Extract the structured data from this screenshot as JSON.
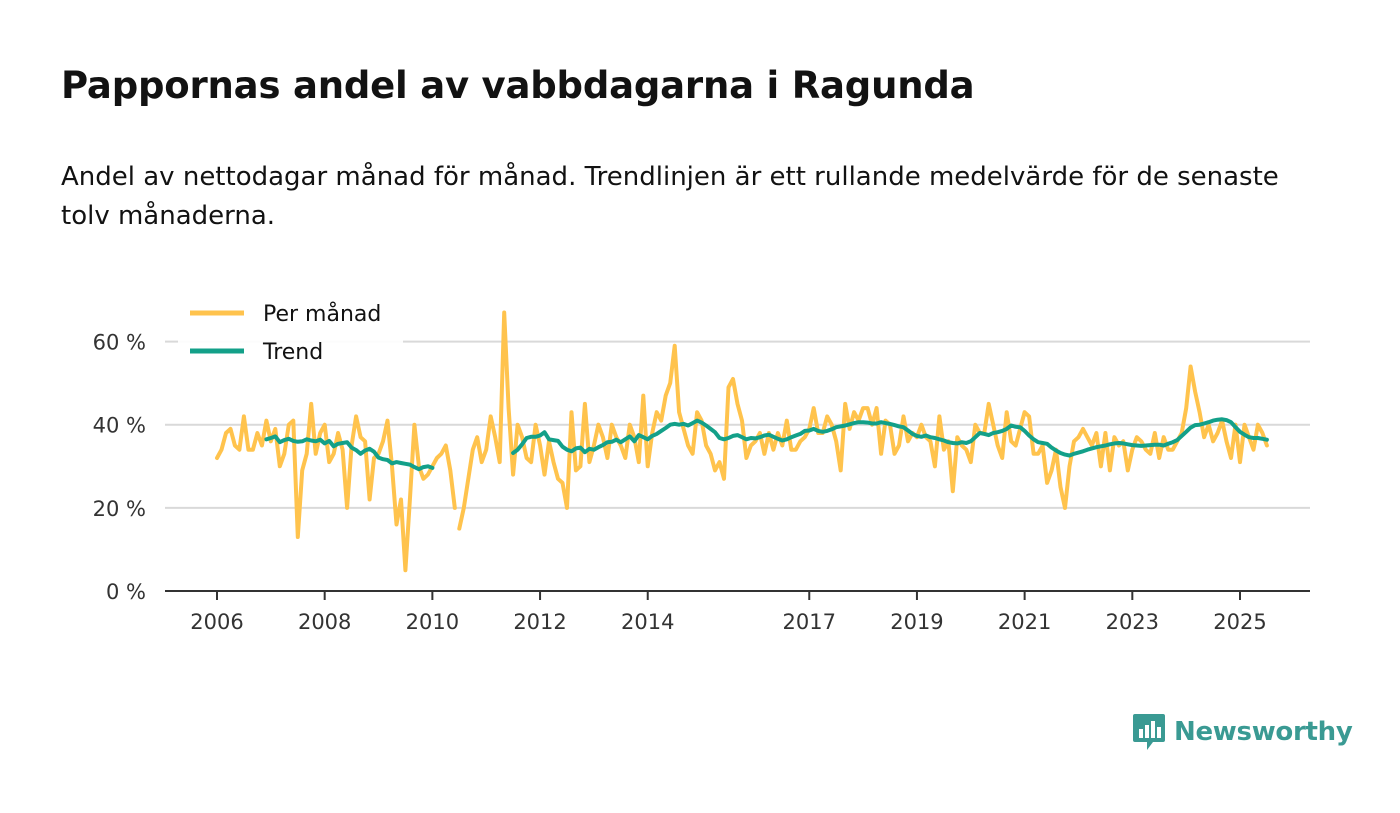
{
  "title": "Pappornas andel av vabbdagarna i Ragunda",
  "subtitle": "Andel av nettodagar månad för månad. Trendlinjen är ett rullande medelvärde för de senaste tolv månaderna.",
  "brand": {
    "name": "Newsworthy",
    "color": "#3a9a93"
  },
  "chart_data": {
    "type": "line",
    "title": "Pappornas andel av vabbdagarna i Ragunda",
    "xlabel": "",
    "ylabel": "",
    "ylim": [
      0,
      70
    ],
    "xlim": [
      2005.5,
      2026.3
    ],
    "grid": true,
    "legend_position": "top-left",
    "y_ticks": [
      {
        "value": 0,
        "label": "0 %"
      },
      {
        "value": 20,
        "label": "20 %"
      },
      {
        "value": 40,
        "label": "40 %"
      },
      {
        "value": 60,
        "label": "60 %"
      }
    ],
    "x_ticks": [
      {
        "value": 2006,
        "label": "2006"
      },
      {
        "value": 2008,
        "label": "2008"
      },
      {
        "value": 2010,
        "label": "2010"
      },
      {
        "value": 2012,
        "label": "2012"
      },
      {
        "value": 2014,
        "label": "2014"
      },
      {
        "value": 2017,
        "label": "2017"
      },
      {
        "value": 2019,
        "label": "2019"
      },
      {
        "value": 2021,
        "label": "2021"
      },
      {
        "value": 2023,
        "label": "2023"
      },
      {
        "value": 2025,
        "label": "2025"
      }
    ],
    "series": [
      {
        "name": "Per månad",
        "color": "#ffc34d",
        "segments": [
          {
            "start": 2006.0,
            "values": [
              32,
              34,
              38,
              39,
              35,
              34,
              42,
              34,
              34,
              38,
              35,
              41,
              36,
              39,
              30,
              33,
              40,
              41,
              13,
              29,
              33,
              45,
              33,
              38,
              40,
              31,
              33,
              38,
              34,
              20,
              35,
              42,
              37,
              36,
              22,
              32,
              33,
              36,
              41,
              30,
              16,
              22,
              5,
              22,
              40,
              30,
              27,
              28,
              30,
              32,
              33,
              35,
              29,
              20
            ]
          },
          {
            "start": 2010.5,
            "values": [
              15,
              20,
              27,
              34,
              37,
              31,
              34,
              42,
              37,
              31,
              67,
              44,
              28,
              40,
              37,
              32,
              31,
              40,
              35,
              28,
              36,
              31,
              27,
              26,
              20,
              43,
              29,
              30,
              45,
              31,
              35,
              40,
              37,
              32,
              40,
              37,
              35,
              32,
              40,
              37,
              31,
              47,
              30,
              38,
              43,
              41,
              47,
              50,
              59,
              43,
              39,
              35,
              33,
              43,
              41,
              35,
              33,
              29,
              31,
              27,
              49,
              51,
              45,
              41,
              32,
              35,
              36,
              38,
              33,
              38,
              34,
              38,
              35,
              41,
              34,
              34,
              36,
              37,
              39,
              44,
              38,
              38,
              42,
              40,
              36,
              29,
              45,
              39,
              43,
              41,
              44,
              44,
              40,
              44,
              33,
              41,
              40,
              33,
              35,
              42,
              36,
              38,
              37,
              40,
              37,
              36,
              30,
              42,
              34,
              36,
              24,
              37,
              35,
              34,
              31,
              40,
              38,
              38,
              45,
              40,
              35,
              32,
              43,
              36,
              35,
              39,
              43,
              42,
              33,
              33,
              35,
              26,
              29,
              34,
              25,
              20,
              30,
              36,
              37,
              39,
              37,
              35,
              38,
              30,
              38,
              29,
              37,
              35,
              36,
              29,
              34,
              37,
              36,
              34,
              33,
              38,
              32,
              37,
              34,
              34,
              36,
              38,
              44,
              54,
              48,
              43,
              37,
              40,
              36,
              38,
              41,
              36,
              32,
              40,
              31,
              40,
              37,
              34,
              40,
              38,
              35
            ]
          }
        ]
      },
      {
        "name": "Trend",
        "color": "#13a089",
        "segments": [
          {
            "start": 2006.9167,
            "values": [
              36.5,
              36.8,
              37.2,
              35.8,
              36.3,
              36.6,
              36.1,
              35.9,
              36.0,
              36.5,
              36.2,
              36.0,
              36.4,
              35.5,
              36.1,
              34.8,
              35.4,
              35.6,
              35.8,
              34.5,
              33.9,
              33.0,
              33.8,
              34.2,
              33.5,
              32.1,
              31.7,
              31.5,
              30.7,
              31.0,
              30.8,
              30.6,
              30.4,
              29.8,
              29.3,
              29.8,
              30.0,
              29.6
            ]
          },
          {
            "start": 2011.5,
            "values": [
              33.2,
              34.0,
              35.3,
              36.8,
              37.1,
              37.1,
              37.4,
              38.2,
              36.5,
              36.3,
              36.1,
              34.7,
              34.0,
              33.6,
              34.3,
              34.5,
              33.4,
              34.2,
              34.0,
              34.6,
              35.1,
              35.8,
              35.9,
              36.4,
              35.8,
              36.5,
              37.2,
              36.0,
              37.5,
              37.0,
              36.5,
              37.3,
              37.8,
              38.5,
              39.2,
              40.0,
              40.2,
              40.0,
              40.2,
              39.8,
              40.4,
              41.0,
              40.5,
              39.8,
              39.0,
              38.2,
              36.8,
              36.5,
              36.8,
              37.3,
              37.5,
              37.0,
              36.5,
              36.8,
              36.7,
              37.0,
              37.4,
              37.6,
              37.1,
              36.6,
              36.2,
              36.5,
              37.0,
              37.4,
              37.8,
              38.5,
              38.6,
              39.0,
              38.5,
              38.3,
              38.5,
              38.9,
              39.4,
              39.6,
              39.8,
              40.1,
              40.4,
              40.6,
              40.6,
              40.5,
              40.3,
              40.3,
              40.6,
              40.4,
              40.2,
              39.9,
              39.6,
              39.4,
              38.6,
              37.8,
              37.3,
              37.1,
              37.4,
              37.0,
              36.8,
              36.5,
              36.2,
              35.8,
              35.6,
              35.5,
              35.8,
              35.6,
              36.0,
              37.0,
              38.0,
              37.8,
              37.5,
              38.0,
              38.2,
              38.5,
              39.0,
              39.8,
              39.5,
              39.4,
              38.5,
              37.4,
              36.5,
              35.8,
              35.6,
              35.4,
              34.5,
              33.8,
              33.2,
              32.8,
              32.6,
              33.0,
              33.3,
              33.6,
              34.0,
              34.3,
              34.6,
              34.8,
              35.0,
              35.3,
              35.5,
              35.6,
              35.5,
              35.3,
              35.1,
              35.0,
              34.9,
              35.0,
              35.1,
              35.2,
              35.2,
              35.0,
              35.4,
              35.8,
              36.3,
              37.3,
              38.3,
              39.3,
              39.9,
              40.0,
              40.3,
              40.6,
              41.0,
              41.2,
              41.3,
              41.1,
              40.6,
              39.4,
              38.3,
              37.6,
              37.0,
              36.8,
              36.8,
              36.6,
              36.4
            ]
          }
        ]
      }
    ]
  }
}
